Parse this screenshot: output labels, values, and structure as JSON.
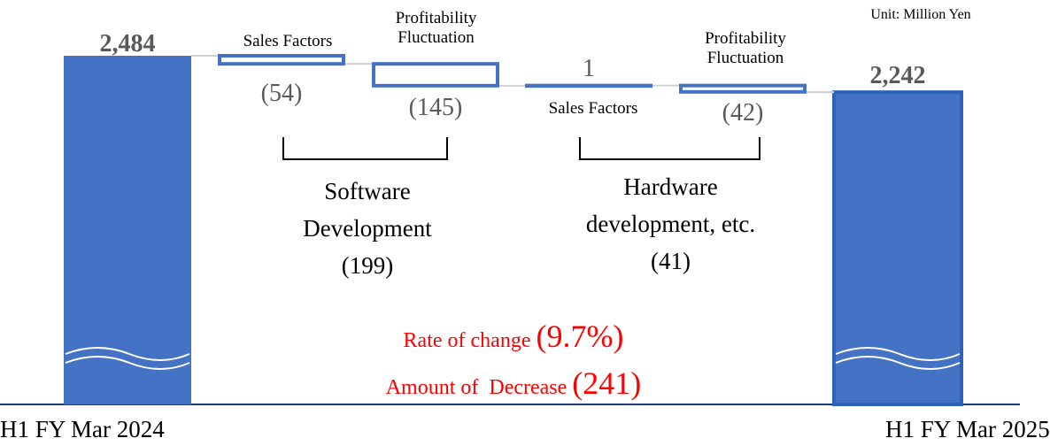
{
  "chart_data": {
    "type": "waterfall",
    "unit": "Unit: Million Yen",
    "categories": [
      "H1 FY Mar 2024",
      "Sales Factors",
      "Profitability Fluctuation",
      "Sales Factors",
      "Profitability Fluctuation",
      "H1 FY Mar 2025"
    ],
    "measure": [
      "total",
      "relative",
      "relative",
      "relative",
      "relative",
      "total"
    ],
    "values": [
      2484,
      -54,
      -145,
      1,
      -42,
      2242
    ],
    "value_labels": [
      "2,484",
      "(54)",
      "(145)",
      "1",
      "(42)",
      "2,242"
    ],
    "color": "#4472c4",
    "groups": [
      {
        "name": "Software Development",
        "total": "(199)"
      },
      {
        "name": "Hardware development, etc.",
        "total": "(41)"
      }
    ],
    "annotations": [
      {
        "text": "Rate of change",
        "value": "(9.7%)"
      },
      {
        "text": "Amount of  Decrease",
        "value": "(241)"
      }
    ]
  }
}
